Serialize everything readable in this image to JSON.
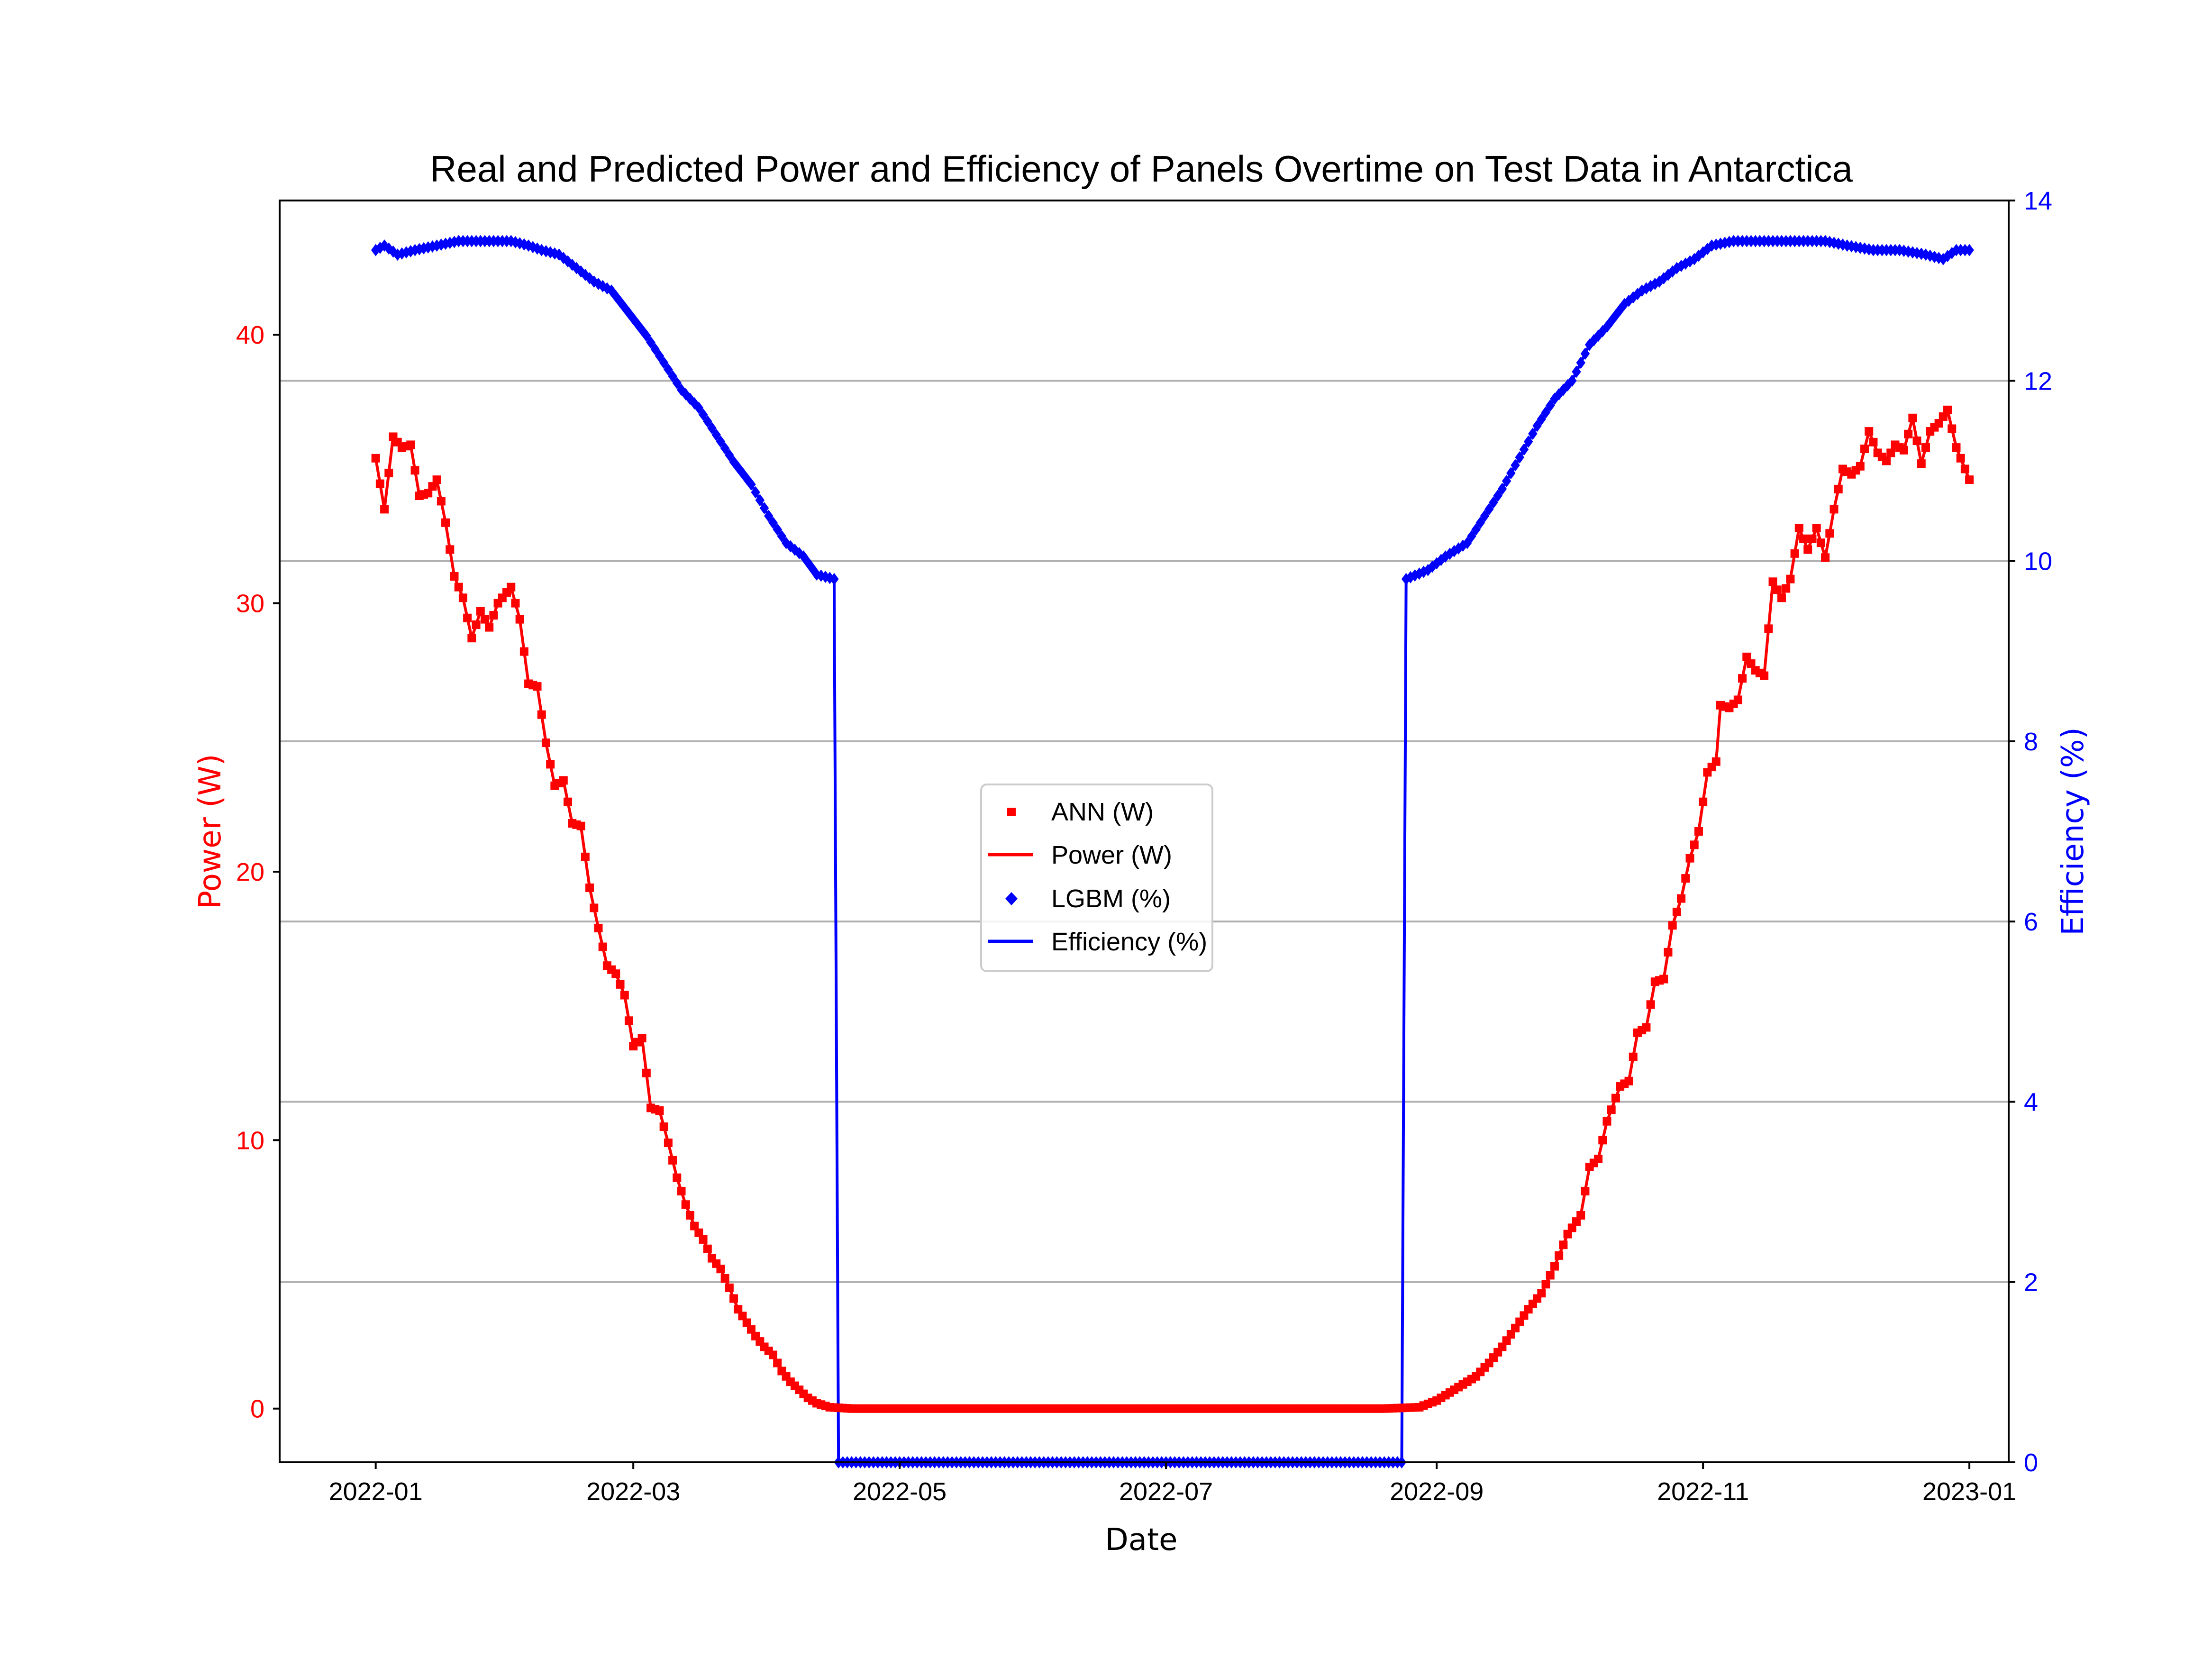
{
  "chart_data": {
    "type": "line",
    "title": "Real and Predicted Power and Efficiency of Panels Overtime on Test Data in Antarctica",
    "xlabel": "Date",
    "ylabel_left": "Power (W)",
    "ylabel_right": "Efficiency (%)",
    "xlim": [
      "2021-12-10",
      "2023-01-10"
    ],
    "ylim_left": [
      -2,
      45
    ],
    "ylim_right": [
      0,
      14
    ],
    "x_ticks": [
      "2022-01",
      "2022-03",
      "2022-05",
      "2022-07",
      "2022-09",
      "2022-11",
      "2023-01"
    ],
    "y_ticks_left": [
      0,
      10,
      20,
      30,
      40
    ],
    "y_ticks_right": [
      0,
      2,
      4,
      6,
      8,
      10,
      12,
      14
    ],
    "grid": "horizontal (right axis)",
    "legend_position": "center",
    "legend": [
      "ANN (W)",
      "Power (W)",
      "LGBM (%)",
      "Efficiency (%)"
    ],
    "colors": {
      "power": "#ff0000",
      "efficiency": "#0000ff",
      "grid": "#b0b0b0"
    },
    "series": [
      {
        "name": "Power (W)",
        "axis": "left",
        "style": "line",
        "points": [
          [
            "2022-01-01",
            35.4
          ],
          [
            "2022-01-03",
            33.5
          ],
          [
            "2022-01-05",
            36.2
          ],
          [
            "2022-01-07",
            35.8
          ],
          [
            "2022-01-09",
            35.9
          ],
          [
            "2022-01-11",
            34.0
          ],
          [
            "2022-01-13",
            34.1
          ],
          [
            "2022-01-15",
            34.6
          ],
          [
            "2022-01-17",
            33.0
          ],
          [
            "2022-01-19",
            31.0
          ],
          [
            "2022-01-21",
            30.2
          ],
          [
            "2022-01-23",
            28.7
          ],
          [
            "2022-01-25",
            29.7
          ],
          [
            "2022-01-27",
            29.1
          ],
          [
            "2022-01-29",
            30.0
          ],
          [
            "2022-02-01",
            30.6
          ],
          [
            "2022-02-03",
            29.4
          ],
          [
            "2022-02-05",
            27.0
          ],
          [
            "2022-02-07",
            26.9
          ],
          [
            "2022-02-09",
            24.8
          ],
          [
            "2022-02-11",
            23.2
          ],
          [
            "2022-02-13",
            23.4
          ],
          [
            "2022-02-15",
            21.8
          ],
          [
            "2022-02-17",
            21.7
          ],
          [
            "2022-02-19",
            19.4
          ],
          [
            "2022-02-21",
            17.9
          ],
          [
            "2022-02-23",
            16.5
          ],
          [
            "2022-02-25",
            16.2
          ],
          [
            "2022-02-27",
            15.4
          ],
          [
            "2022-03-01",
            13.5
          ],
          [
            "2022-03-03",
            13.8
          ],
          [
            "2022-03-05",
            11.2
          ],
          [
            "2022-03-07",
            11.1
          ],
          [
            "2022-03-09",
            9.9
          ],
          [
            "2022-03-11",
            8.6
          ],
          [
            "2022-03-13",
            7.6
          ],
          [
            "2022-03-15",
            6.8
          ],
          [
            "2022-03-17",
            6.3
          ],
          [
            "2022-03-19",
            5.6
          ],
          [
            "2022-03-21",
            5.2
          ],
          [
            "2022-03-23",
            4.5
          ],
          [
            "2022-03-25",
            3.7
          ],
          [
            "2022-03-27",
            3.2
          ],
          [
            "2022-03-29",
            2.7
          ],
          [
            "2022-03-31",
            2.3
          ],
          [
            "2022-04-02",
            2.0
          ],
          [
            "2022-04-04",
            1.4
          ],
          [
            "2022-04-06",
            1.0
          ],
          [
            "2022-04-08",
            0.7
          ],
          [
            "2022-04-10",
            0.4
          ],
          [
            "2022-04-12",
            0.2
          ],
          [
            "2022-04-15",
            0.05
          ],
          [
            "2022-04-20",
            0.0
          ],
          [
            "2022-06-01",
            0.0
          ],
          [
            "2022-08-20",
            0.0
          ],
          [
            "2022-08-28",
            0.05
          ],
          [
            "2022-09-01",
            0.3
          ],
          [
            "2022-09-04",
            0.6
          ],
          [
            "2022-09-07",
            0.9
          ],
          [
            "2022-09-10",
            1.2
          ],
          [
            "2022-09-13",
            1.7
          ],
          [
            "2022-09-16",
            2.3
          ],
          [
            "2022-09-19",
            3.0
          ],
          [
            "2022-09-22",
            3.7
          ],
          [
            "2022-09-25",
            4.3
          ],
          [
            "2022-09-28",
            5.3
          ],
          [
            "2022-10-01",
            6.5
          ],
          [
            "2022-10-04",
            7.2
          ],
          [
            "2022-10-06",
            9.0
          ],
          [
            "2022-10-08",
            9.3
          ],
          [
            "2022-10-10",
            10.7
          ],
          [
            "2022-10-13",
            12.0
          ],
          [
            "2022-10-15",
            12.2
          ],
          [
            "2022-10-17",
            14.0
          ],
          [
            "2022-10-19",
            14.2
          ],
          [
            "2022-10-21",
            15.9
          ],
          [
            "2022-10-23",
            16.0
          ],
          [
            "2022-10-25",
            18.0
          ],
          [
            "2022-10-27",
            19.0
          ],
          [
            "2022-10-29",
            20.5
          ],
          [
            "2022-10-31",
            21.5
          ],
          [
            "2022-11-02",
            23.7
          ],
          [
            "2022-11-04",
            24.1
          ],
          [
            "2022-11-05",
            26.2
          ],
          [
            "2022-11-07",
            26.1
          ],
          [
            "2022-11-09",
            26.4
          ],
          [
            "2022-11-11",
            28.0
          ],
          [
            "2022-11-13",
            27.5
          ],
          [
            "2022-11-15",
            27.3
          ],
          [
            "2022-11-17",
            30.8
          ],
          [
            "2022-11-19",
            30.2
          ],
          [
            "2022-11-21",
            30.9
          ],
          [
            "2022-11-23",
            32.8
          ],
          [
            "2022-11-25",
            32.0
          ],
          [
            "2022-11-27",
            32.8
          ],
          [
            "2022-11-29",
            31.7
          ],
          [
            "2022-12-01",
            33.5
          ],
          [
            "2022-12-03",
            35.0
          ],
          [
            "2022-12-05",
            34.8
          ],
          [
            "2022-12-07",
            35.1
          ],
          [
            "2022-12-09",
            36.4
          ],
          [
            "2022-12-11",
            35.6
          ],
          [
            "2022-12-13",
            35.3
          ],
          [
            "2022-12-15",
            35.9
          ],
          [
            "2022-12-17",
            35.7
          ],
          [
            "2022-12-19",
            36.9
          ],
          [
            "2022-12-21",
            35.2
          ],
          [
            "2022-12-23",
            36.4
          ],
          [
            "2022-12-25",
            36.7
          ],
          [
            "2022-12-27",
            37.2
          ],
          [
            "2022-12-29",
            35.8
          ],
          [
            "2022-12-31",
            35.0
          ],
          [
            "2023-01-01",
            34.6
          ]
        ]
      },
      {
        "name": "ANN (W)",
        "axis": "left",
        "style": "square-markers",
        "follows": "Power (W)"
      },
      {
        "name": "Efficiency (%)",
        "axis": "right",
        "style": "line",
        "points": [
          [
            "2022-01-01",
            13.45
          ],
          [
            "2022-01-03",
            13.5
          ],
          [
            "2022-01-06",
            13.4
          ],
          [
            "2022-01-10",
            13.45
          ],
          [
            "2022-01-15",
            13.5
          ],
          [
            "2022-01-20",
            13.55
          ],
          [
            "2022-01-25",
            13.55
          ],
          [
            "2022-02-01",
            13.55
          ],
          [
            "2022-02-05",
            13.5
          ],
          [
            "2022-02-08",
            13.45
          ],
          [
            "2022-02-12",
            13.4
          ],
          [
            "2022-02-16",
            13.25
          ],
          [
            "2022-02-20",
            13.1
          ],
          [
            "2022-02-24",
            13.0
          ],
          [
            "2022-02-28",
            12.75
          ],
          [
            "2022-03-04",
            12.5
          ],
          [
            "2022-03-08",
            12.2
          ],
          [
            "2022-03-12",
            11.9
          ],
          [
            "2022-03-16",
            11.7
          ],
          [
            "2022-03-20",
            11.4
          ],
          [
            "2022-03-24",
            11.1
          ],
          [
            "2022-03-28",
            10.85
          ],
          [
            "2022-04-01",
            10.5
          ],
          [
            "2022-04-05",
            10.2
          ],
          [
            "2022-04-09",
            10.05
          ],
          [
            "2022-04-12",
            9.85
          ],
          [
            "2022-04-16",
            9.8
          ],
          [
            "2022-04-17",
            0.0
          ],
          [
            "2022-06-01",
            0.0
          ],
          [
            "2022-08-24",
            0.0
          ],
          [
            "2022-08-25",
            9.8
          ],
          [
            "2022-08-30",
            9.9
          ],
          [
            "2022-09-03",
            10.05
          ],
          [
            "2022-09-08",
            10.2
          ],
          [
            "2022-09-12",
            10.5
          ],
          [
            "2022-09-16",
            10.8
          ],
          [
            "2022-09-20",
            11.15
          ],
          [
            "2022-09-24",
            11.5
          ],
          [
            "2022-09-28",
            11.8
          ],
          [
            "2022-10-02",
            12.0
          ],
          [
            "2022-10-06",
            12.4
          ],
          [
            "2022-10-10",
            12.6
          ],
          [
            "2022-10-14",
            12.85
          ],
          [
            "2022-10-18",
            13.0
          ],
          [
            "2022-10-22",
            13.1
          ],
          [
            "2022-10-26",
            13.25
          ],
          [
            "2022-10-30",
            13.35
          ],
          [
            "2022-11-03",
            13.5
          ],
          [
            "2022-11-08",
            13.55
          ],
          [
            "2022-11-15",
            13.55
          ],
          [
            "2022-11-22",
            13.55
          ],
          [
            "2022-11-29",
            13.55
          ],
          [
            "2022-12-04",
            13.5
          ],
          [
            "2022-12-10",
            13.45
          ],
          [
            "2022-12-16",
            13.45
          ],
          [
            "2022-12-22",
            13.4
          ],
          [
            "2022-12-26",
            13.35
          ],
          [
            "2022-12-29",
            13.45
          ],
          [
            "2023-01-01",
            13.45
          ]
        ]
      },
      {
        "name": "LGBM (%)",
        "axis": "right",
        "style": "diamond-markers",
        "follows": "Efficiency (%)"
      }
    ]
  }
}
